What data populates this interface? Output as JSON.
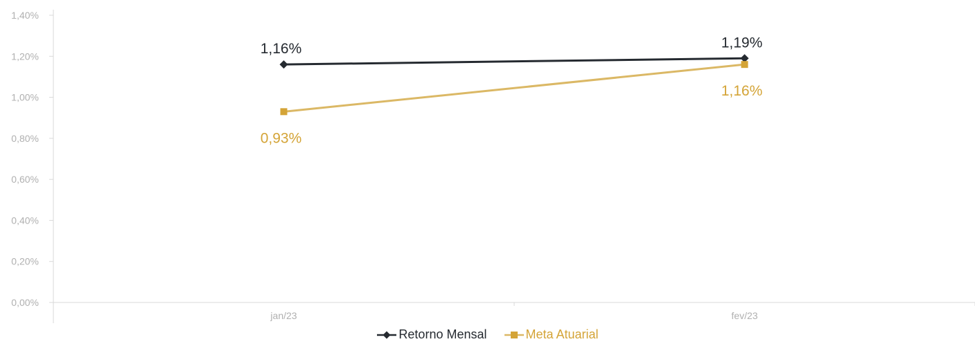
{
  "chart_data": {
    "type": "line",
    "categories": [
      "jan/23",
      "fev/23"
    ],
    "series": [
      {
        "name": "Retorno Mensal",
        "values": [
          1.16,
          1.19
        ],
        "labels": [
          "1,16%",
          "1,19%"
        ],
        "color": "#252a30",
        "marker": "diamond"
      },
      {
        "name": "Meta Atuarial",
        "values": [
          0.93,
          1.16
        ],
        "labels": [
          "0,93%",
          "1,16%"
        ],
        "color": "#dbb865",
        "label_color": "#d4a437",
        "marker": "square"
      }
    ],
    "yticks": [
      "0,00%",
      "0,20%",
      "0,40%",
      "0,60%",
      "0,80%",
      "1,00%",
      "1,20%",
      "1,40%"
    ],
    "ylim": [
      0,
      1.4
    ],
    "grid": false,
    "legend_position": "bottom"
  }
}
